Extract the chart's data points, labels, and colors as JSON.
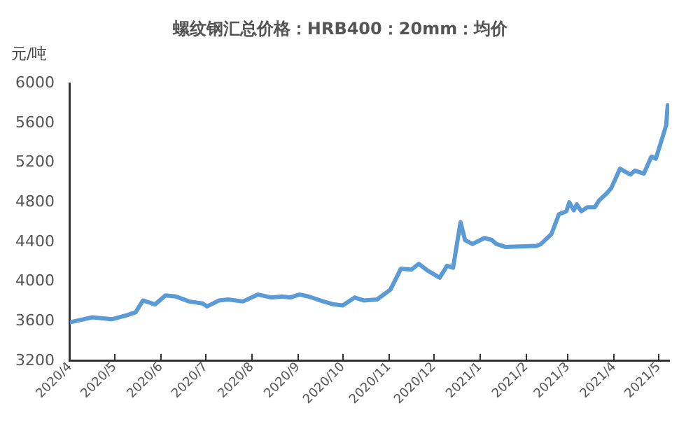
{
  "chart_data": {
    "type": "line",
    "title": "螺纹钢汇总价格：HRB400：20mm：均价",
    "ylabel": "元/吨",
    "x": [
      "2020-04-01",
      "2020-04-16",
      "2020-04-29",
      "2020-05-09",
      "2020-05-15",
      "2020-05-20",
      "2020-05-28",
      "2020-06-04",
      "2020-06-11",
      "2020-06-20",
      "2020-06-29",
      "2020-07-02",
      "2020-07-10",
      "2020-07-16",
      "2020-07-26",
      "2020-08-05",
      "2020-08-14",
      "2020-08-21",
      "2020-08-27",
      "2020-09-02",
      "2020-09-08",
      "2020-09-18",
      "2020-09-25",
      "2020-10-01",
      "2020-10-09",
      "2020-10-15",
      "2020-10-24",
      "2020-11-02",
      "2020-11-09",
      "2020-11-16",
      "2020-11-21",
      "2020-11-27",
      "2020-12-05",
      "2020-12-10",
      "2020-12-14",
      "2020-12-19",
      "2020-12-22",
      "2020-12-27",
      "2021-01-04",
      "2021-01-09",
      "2021-01-12",
      "2021-01-18",
      "2021-02-08",
      "2021-02-11",
      "2021-02-18",
      "2021-02-23",
      "2021-02-28",
      "2021-03-02",
      "2021-03-05",
      "2021-03-07",
      "2021-03-10",
      "2021-03-14",
      "2021-03-19",
      "2021-03-22",
      "2021-03-27",
      "2021-03-30",
      "2021-04-05",
      "2021-04-12",
      "2021-04-15",
      "2021-04-21",
      "2021-04-26",
      "2021-04-29",
      "2021-05-04",
      "2021-05-06",
      "2021-05-07"
    ],
    "series": [
      {
        "color": "#5b9bd5",
        "values": [
          3590,
          3640,
          3620,
          3660,
          3690,
          3810,
          3770,
          3860,
          3850,
          3800,
          3780,
          3750,
          3810,
          3820,
          3800,
          3870,
          3840,
          3850,
          3840,
          3870,
          3850,
          3800,
          3770,
          3760,
          3840,
          3810,
          3820,
          3920,
          4130,
          4120,
          4180,
          4110,
          4040,
          4160,
          4140,
          4600,
          4420,
          4380,
          4440,
          4420,
          4380,
          4350,
          4360,
          4380,
          4480,
          4680,
          4710,
          4800,
          4720,
          4780,
          4710,
          4750,
          4750,
          4820,
          4890,
          4940,
          5140,
          5080,
          5120,
          5090,
          5260,
          5240,
          5480,
          5580,
          5780
        ]
      }
    ],
    "xlim": [
      "2020-04-01",
      "2021-05-08"
    ],
    "xticks": [
      {
        "value": "2020-04-01",
        "label": "2020/4"
      },
      {
        "value": "2020-05-01",
        "label": "2020/5"
      },
      {
        "value": "2020-06-01",
        "label": "2020/6"
      },
      {
        "value": "2020-07-01",
        "label": "2020/7"
      },
      {
        "value": "2020-08-01",
        "label": "2020/8"
      },
      {
        "value": "2020-09-01",
        "label": "2020/9"
      },
      {
        "value": "2020-10-01",
        "label": "2020/10"
      },
      {
        "value": "2020-11-01",
        "label": "2020/11"
      },
      {
        "value": "2020-12-01",
        "label": "2020/12"
      },
      {
        "value": "2021-01-01",
        "label": "2021/1"
      },
      {
        "value": "2021-02-01",
        "label": "2021/2"
      },
      {
        "value": "2021-03-01",
        "label": "2021/3"
      },
      {
        "value": "2021-04-01",
        "label": "2021/4"
      },
      {
        "value": "2021-05-01",
        "label": "2021/5"
      }
    ],
    "ylim": [
      3200,
      6000
    ],
    "yticks": [
      3200,
      3600,
      4000,
      4400,
      4800,
      5200,
      5600,
      6000
    ],
    "grid": false,
    "legend": false,
    "marker": "none",
    "line_style": "solid"
  }
}
